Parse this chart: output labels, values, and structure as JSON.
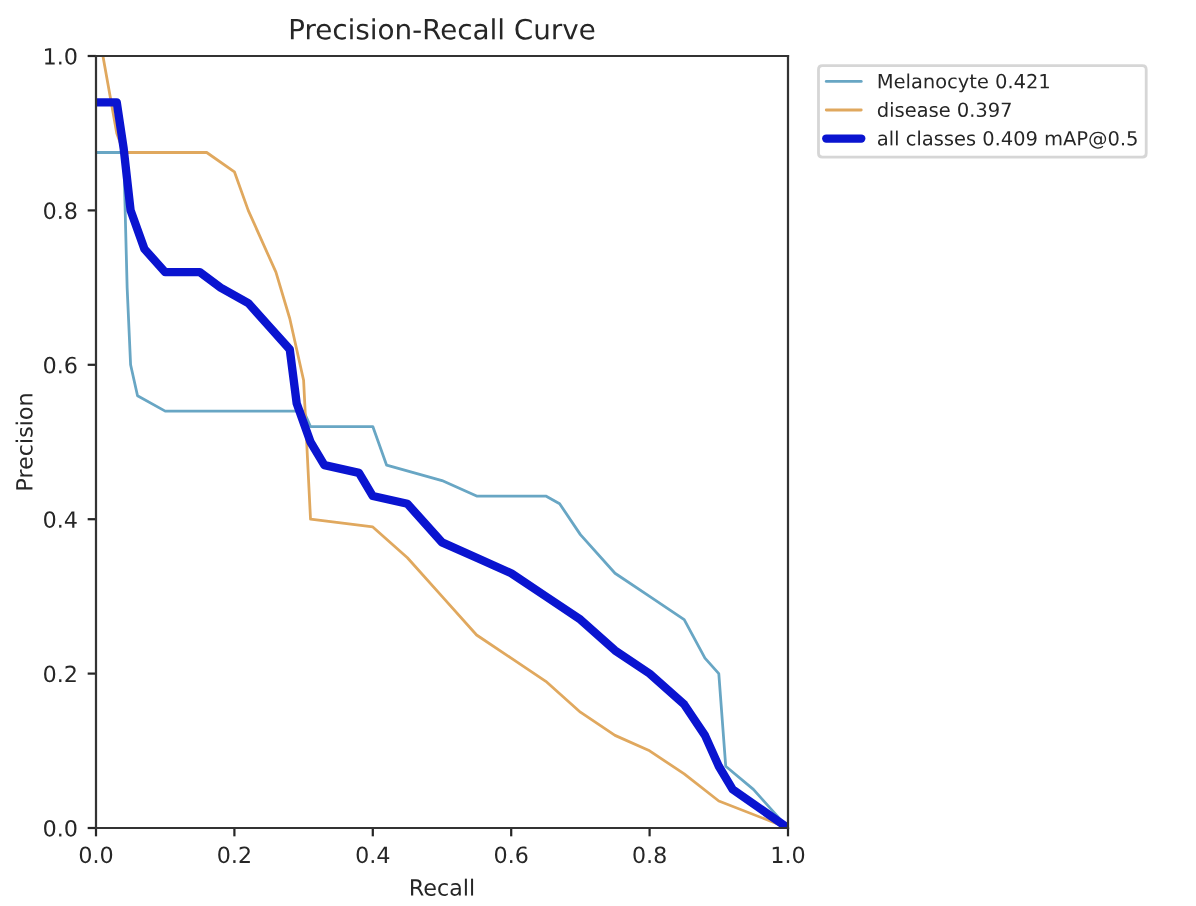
{
  "chart_data": {
    "type": "line",
    "title": "Precision-Recall Curve",
    "xlabel": "Recall",
    "ylabel": "Precision",
    "xlim": [
      0,
      1
    ],
    "ylim": [
      0,
      1
    ],
    "xticks": [
      {
        "value": 0,
        "label": "0.0"
      },
      {
        "value": 0.2,
        "label": "0.2"
      },
      {
        "value": 0.4,
        "label": "0.4"
      },
      {
        "value": 0.6,
        "label": "0.6"
      },
      {
        "value": 0.8,
        "label": "0.8"
      },
      {
        "value": 1,
        "label": "1.0"
      }
    ],
    "yticks": [
      {
        "value": 0,
        "label": "0.0"
      },
      {
        "value": 0.2,
        "label": "0.2"
      },
      {
        "value": 0.4,
        "label": "0.4"
      },
      {
        "value": 0.6,
        "label": "0.6"
      },
      {
        "value": 0.8,
        "label": "0.8"
      },
      {
        "value": 1,
        "label": "1.0"
      }
    ],
    "grid": false,
    "legend": "top right",
    "marker": "none",
    "line_style": "solid",
    "series": [
      {
        "name": "Melanocyte 0.421",
        "color": "#68a6c4",
        "x": [
          0,
          0.04,
          0.045,
          0.05,
          0.06,
          0.1,
          0.3,
          0.31,
          0.4,
          0.42,
          0.5,
          0.55,
          0.65,
          0.67,
          0.7,
          0.75,
          0.8,
          0.85,
          0.88,
          0.9,
          0.91,
          0.95,
          1.0
        ],
        "values": [
          0.875,
          0.875,
          0.7,
          0.6,
          0.56,
          0.54,
          0.54,
          0.52,
          0.52,
          0.47,
          0.45,
          0.43,
          0.43,
          0.42,
          0.38,
          0.33,
          0.3,
          0.27,
          0.22,
          0.2,
          0.08,
          0.05,
          0
        ]
      },
      {
        "name": "disease 0.397",
        "color": "#e0a85e",
        "x": [
          0.01,
          0.03,
          0.04,
          0.16,
          0.2,
          0.22,
          0.26,
          0.28,
          0.3,
          0.31,
          0.4,
          0.45,
          0.5,
          0.55,
          0.6,
          0.65,
          0.7,
          0.75,
          0.8,
          0.85,
          0.9,
          1.0
        ],
        "values": [
          1.0,
          0.9,
          0.875,
          0.875,
          0.85,
          0.8,
          0.72,
          0.66,
          0.58,
          0.4,
          0.39,
          0.35,
          0.3,
          0.25,
          0.22,
          0.19,
          0.15,
          0.12,
          0.1,
          0.07,
          0.035,
          0
        ]
      },
      {
        "name": "all classes 0.409 mAP@0.5",
        "color": "#0a14d0",
        "x": [
          0,
          0.03,
          0.04,
          0.05,
          0.07,
          0.1,
          0.15,
          0.18,
          0.22,
          0.25,
          0.28,
          0.29,
          0.31,
          0.33,
          0.38,
          0.4,
          0.45,
          0.5,
          0.55,
          0.6,
          0.65,
          0.7,
          0.75,
          0.8,
          0.85,
          0.88,
          0.9,
          0.92,
          1.0
        ],
        "values": [
          0.94,
          0.94,
          0.88,
          0.8,
          0.75,
          0.72,
          0.72,
          0.7,
          0.68,
          0.65,
          0.62,
          0.55,
          0.5,
          0.47,
          0.46,
          0.43,
          0.42,
          0.37,
          0.35,
          0.33,
          0.3,
          0.27,
          0.23,
          0.2,
          0.16,
          0.12,
          0.08,
          0.05,
          0
        ]
      }
    ]
  }
}
